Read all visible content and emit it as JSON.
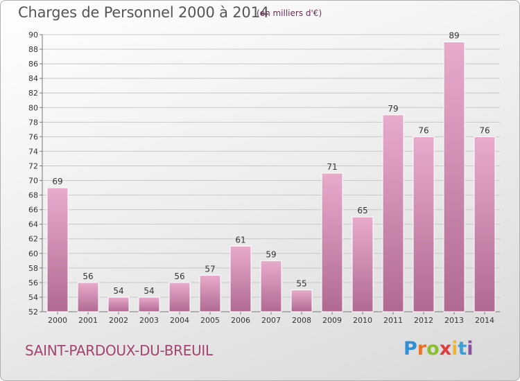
{
  "header": {
    "title": "Charges de Personnel 2000 à 2014",
    "subtitle": "(en milliers d'€)"
  },
  "footer": {
    "commune": "SAINT-PARDOUX-DU-BREUIL",
    "logo_letters": [
      "P",
      "r",
      "o",
      "x",
      "i",
      "t",
      "i"
    ]
  },
  "colors": {
    "bar_top": "#e8abcc",
    "bar_bottom": "#b06a92",
    "commune_text": "#a3446e"
  },
  "chart_data": {
    "type": "bar",
    "title": "Charges de Personnel 2000 à 2014",
    "subtitle": "(en milliers d'€)",
    "categories": [
      "2000",
      "2001",
      "2002",
      "2003",
      "2004",
      "2005",
      "2006",
      "2007",
      "2008",
      "2009",
      "2010",
      "2011",
      "2012",
      "2013",
      "2014"
    ],
    "values": [
      69,
      56,
      54,
      54,
      56,
      57,
      61,
      59,
      55,
      71,
      65,
      79,
      76,
      89,
      76
    ],
    "ylim": [
      52,
      90
    ],
    "yticks": [
      52,
      54,
      56,
      58,
      60,
      62,
      64,
      66,
      68,
      70,
      72,
      74,
      76,
      78,
      80,
      82,
      84,
      86,
      88,
      90
    ],
    "grid": true,
    "xlabel": "",
    "ylabel": ""
  }
}
